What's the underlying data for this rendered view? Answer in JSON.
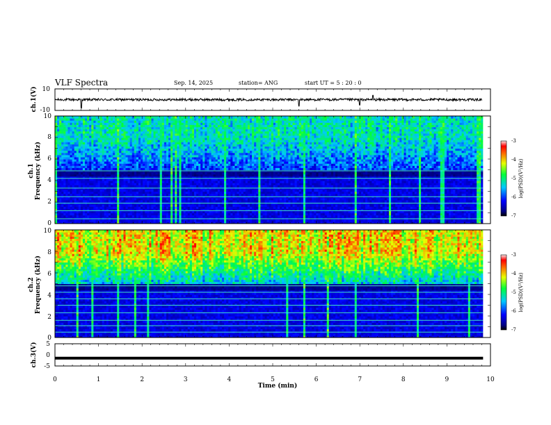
{
  "header": {
    "title": "VLF Spectra",
    "date": "Sep. 14, 2025",
    "station": "station= ANG",
    "start": "start  UT =  5 : 20 : 0"
  },
  "chart_data": [
    {
      "type": "line",
      "name": "ch1-waveform",
      "ylabel": "ch.1(V)",
      "ylim": [
        -10,
        10
      ],
      "yticks": [
        "10",
        "-10"
      ],
      "x": [
        0,
        0.5,
        0.6,
        1.0,
        2.0,
        3.0,
        4.0,
        5.0,
        5.6,
        6.0,
        7.0,
        7.3,
        8.0,
        9.0,
        9.8
      ],
      "y": [
        0,
        0,
        -8,
        0,
        0,
        0,
        0,
        0,
        -6,
        0,
        -5,
        4,
        0,
        0,
        0
      ]
    },
    {
      "type": "heatmap",
      "name": "ch1-spectrogram",
      "ylabel": "ch.1\nFrequency (kHz)",
      "ylabel_lines": [
        "ch.1",
        "Frequency (kHz)"
      ],
      "ylim": [
        0,
        10
      ],
      "yticks": [
        "0",
        "2",
        "4",
        "6",
        "8",
        "10"
      ],
      "xlim": [
        0,
        9.83
      ],
      "colorbar": {
        "label": "log(PSD)(V²/Hz)",
        "range": [
          -7,
          -3
        ],
        "ticks": [
          "-3",
          "-4",
          "-5",
          "-6",
          "-7"
        ]
      },
      "bands_khz": [
        0.45,
        1.2,
        1.9,
        2.5,
        3.3,
        4.2,
        4.9
      ]
    },
    {
      "type": "heatmap",
      "name": "ch2-spectrogram",
      "ylabel": "ch.2\nFrequency (kHz)",
      "ylabel_lines": [
        "ch.2",
        "Frequency (kHz)"
      ],
      "ylim": [
        0,
        10
      ],
      "yticks": [
        "0",
        "2",
        "4",
        "6",
        "8",
        "10"
      ],
      "xlim": [
        0,
        9.83
      ],
      "colorbar": {
        "label": "log(PSD)(V²/Hz)",
        "range": [
          -7,
          -3
        ],
        "ticks": [
          "-3",
          "-4",
          "-5",
          "-6",
          "-7"
        ]
      },
      "bands_khz": [
        0.5,
        1.1,
        1.6,
        2.3,
        3.0,
        3.6,
        4.2,
        4.8
      ]
    },
    {
      "type": "line",
      "name": "ch3-waveform",
      "ylabel": "ch.3(V)",
      "ylim": [
        -5,
        5
      ],
      "yticks": [
        "5",
        "0",
        "-5"
      ],
      "x": [
        0,
        9.83
      ],
      "y": [
        -1.5,
        -1.5
      ]
    }
  ],
  "xaxis": {
    "label": "Time  (min)",
    "range": [
      0,
      10
    ],
    "ticks": [
      "0",
      "1",
      "2",
      "3",
      "4",
      "5",
      "6",
      "7",
      "8",
      "9",
      "10"
    ]
  }
}
